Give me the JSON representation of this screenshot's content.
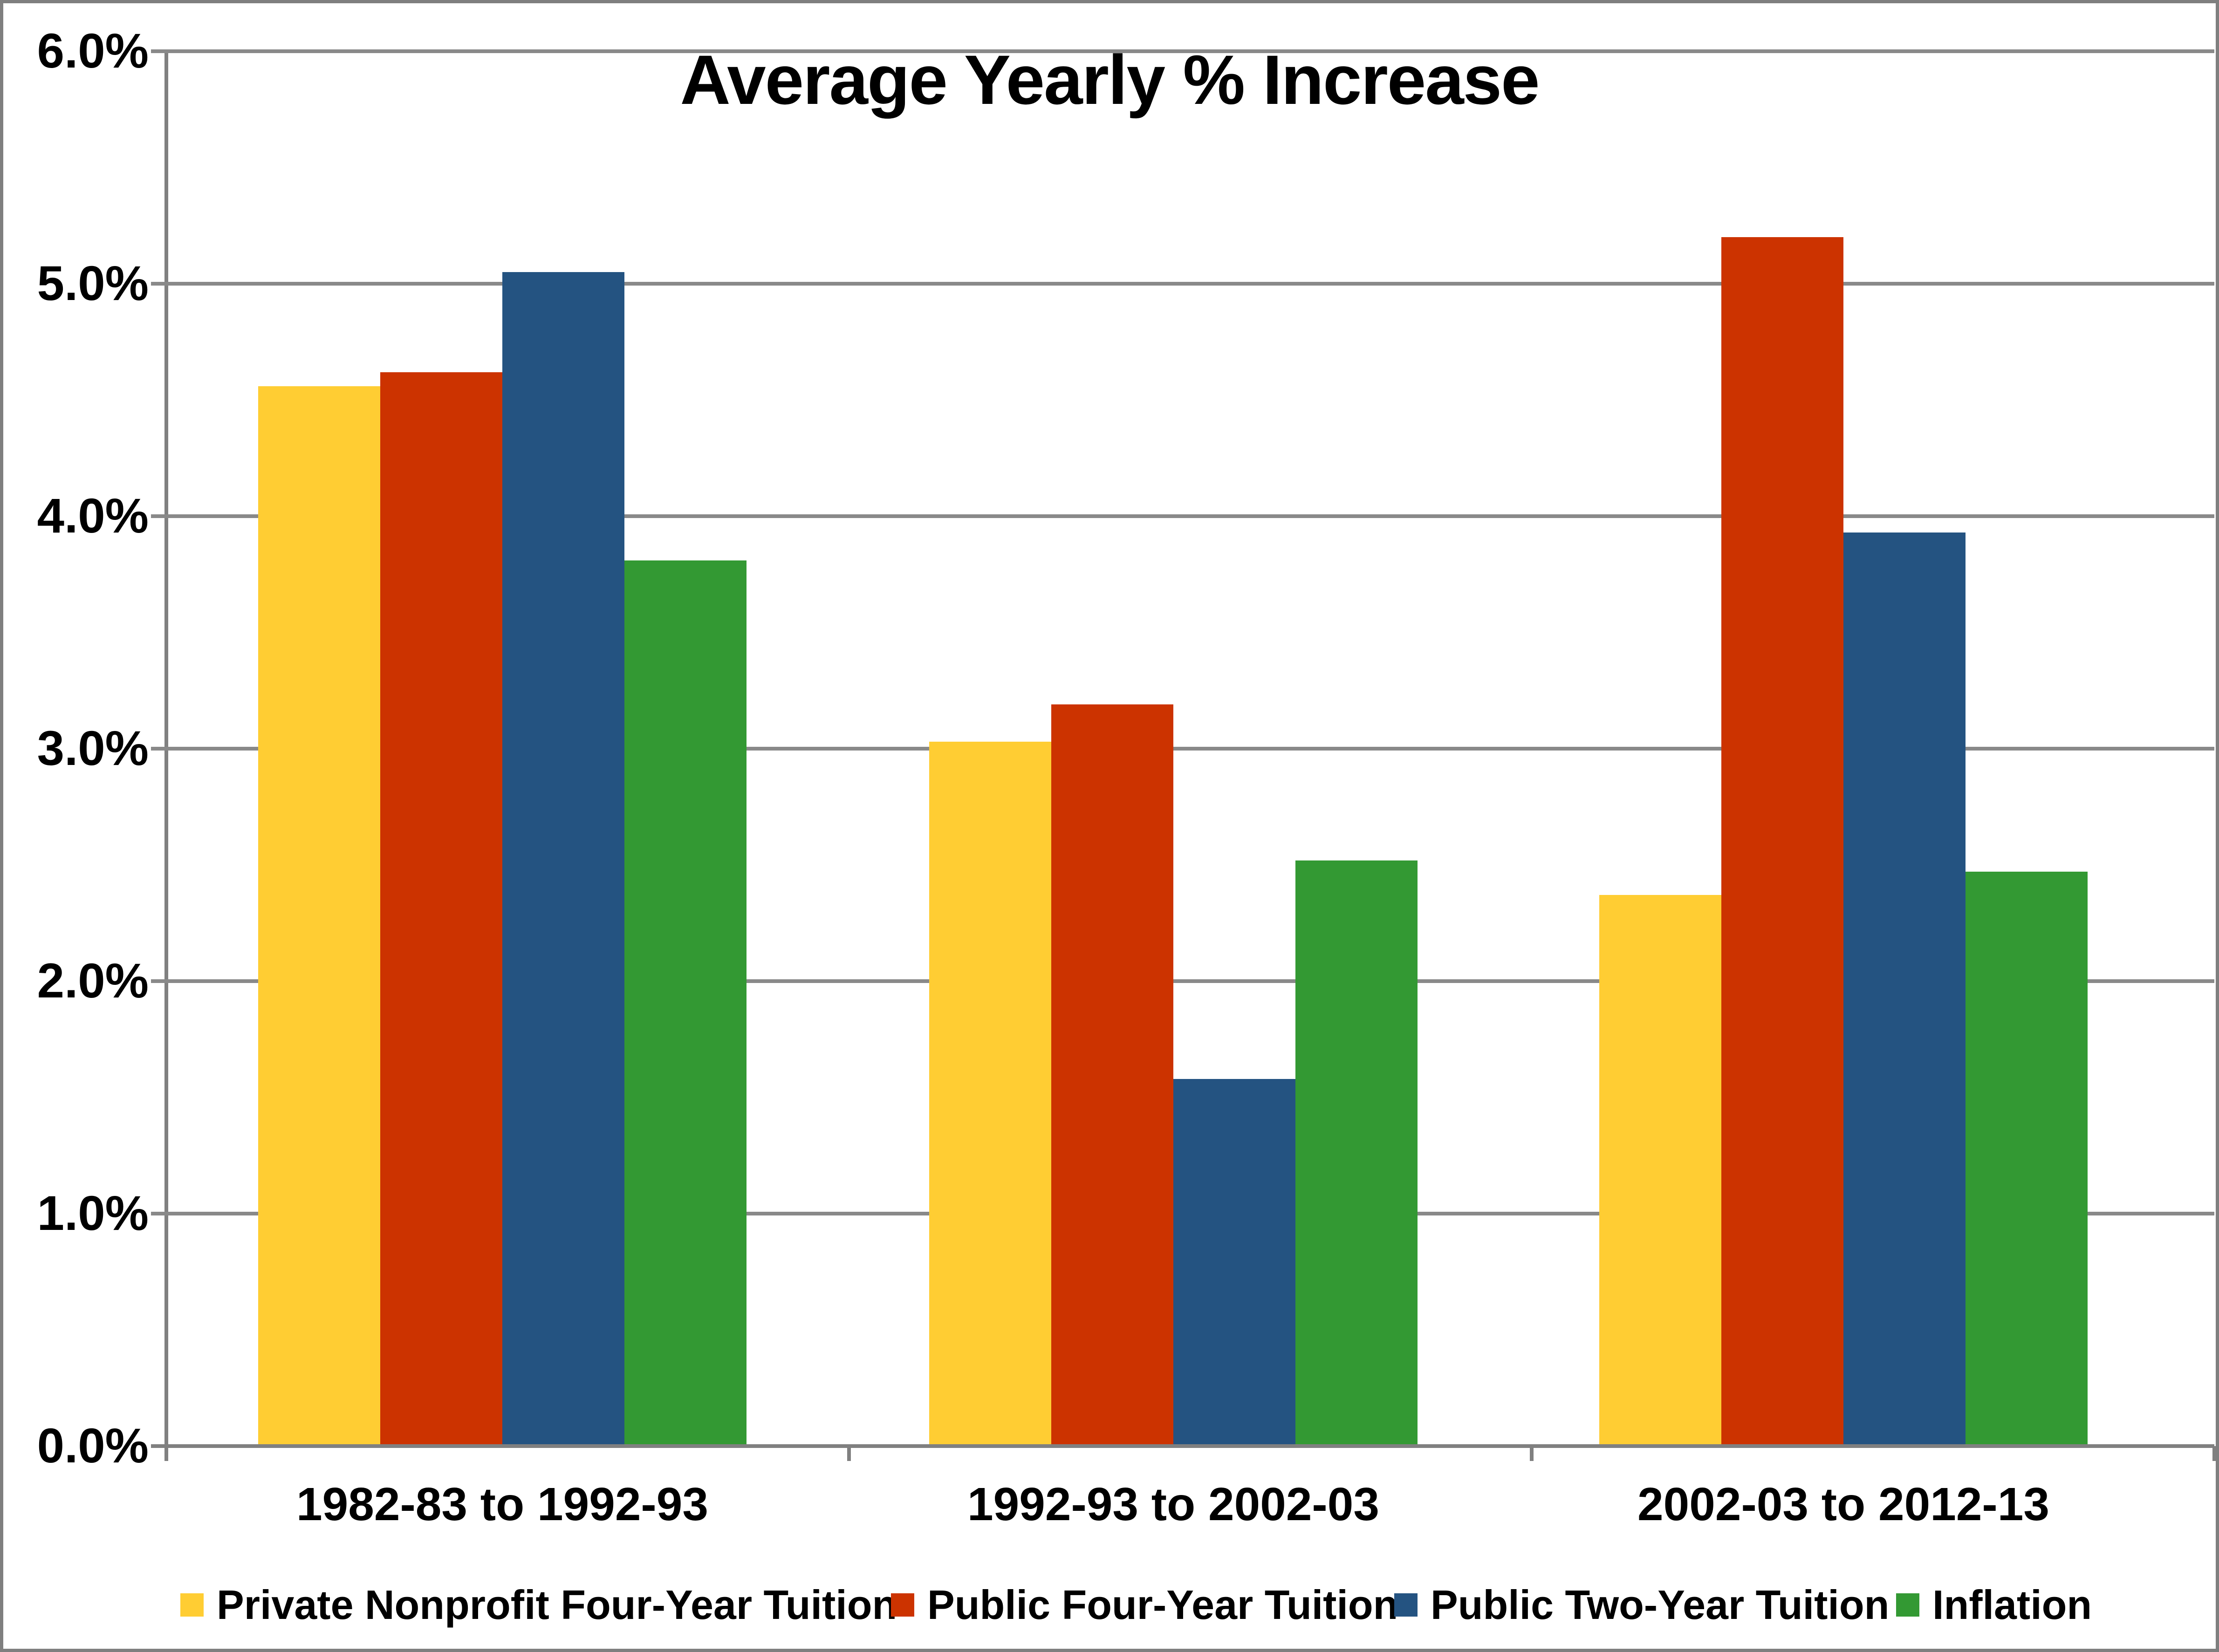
{
  "chart_data": {
    "type": "bar",
    "title": "Average Yearly % Increase",
    "categories": [
      "1982-83 to 1992-93",
      "1992-93 to 2002-03",
      "2002-03 to 2012-13"
    ],
    "series": [
      {
        "name": "Private Nonprofit Four-Year Tuition",
        "color": "#FFCD33",
        "values": [
          4.56,
          3.03,
          2.37
        ]
      },
      {
        "name": "Public Four-Year Tuition",
        "color": "#CC3300",
        "values": [
          4.62,
          3.19,
          5.2
        ]
      },
      {
        "name": "Public Two-Year Tuition",
        "color": "#245381",
        "values": [
          5.05,
          1.58,
          3.93
        ]
      },
      {
        "name": "Inflation",
        "color": "#339933",
        "values": [
          3.81,
          2.52,
          2.47
        ]
      }
    ],
    "xlabel": "",
    "ylabel": "",
    "ylim": [
      0,
      6
    ],
    "y_ticks": [
      "0.0%",
      "1.0%",
      "2.0%",
      "3.0%",
      "4.0%",
      "5.0%",
      "6.0%"
    ],
    "grid": true,
    "legend_position": "bottom",
    "gridline_color": "#898989",
    "axis_color": "#808080"
  }
}
